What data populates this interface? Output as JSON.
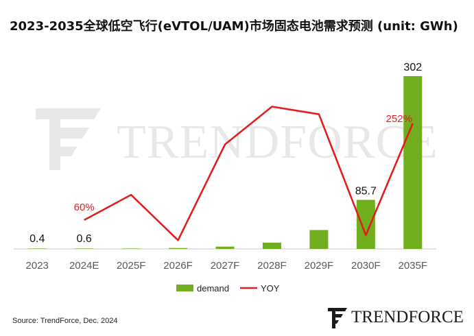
{
  "title": "2023-2035全球低空飞行(eVTOL/UAM)市场固态电池需求预测 (unit: GWh)",
  "source": "Source: TrendForce, Dec. 2024",
  "watermark_text": "TRENDFORCE",
  "logo_text": "TRENDFORCE",
  "colors": {
    "bar": "#70ad1f",
    "line": "#e01e1e",
    "label_red": "#e02020"
  },
  "chart_data": {
    "type": "bar+line",
    "title": "2023-2035全球低空飞行(eVTOL/UAM)市场固态电池需求预测 (unit: GWh)",
    "categories": [
      "2023",
      "2024E",
      "2025F",
      "2026F",
      "2027F",
      "2028F",
      "2029F",
      "2030F",
      "2035F"
    ],
    "series": [
      {
        "name": "demand",
        "type": "bar",
        "values": [
          0.4,
          0.6,
          0.2,
          1.5,
          4,
          11,
          33,
          85.7,
          302
        ]
      },
      {
        "name": "YOY",
        "type": "line",
        "values": [
          null,
          60,
          110,
          20,
          210,
          285,
          270,
          30,
          252
        ]
      }
    ],
    "value_labels": {
      "0": "0.4",
      "1": "0.6",
      "7": "85.7",
      "8": "302"
    },
    "yoy_labels": {
      "1": "60%",
      "8": "252%"
    },
    "legend": [
      "demand",
      "YOY"
    ],
    "legend_position": "bottom",
    "bar_ylim": [
      0,
      302
    ],
    "grid": false
  }
}
